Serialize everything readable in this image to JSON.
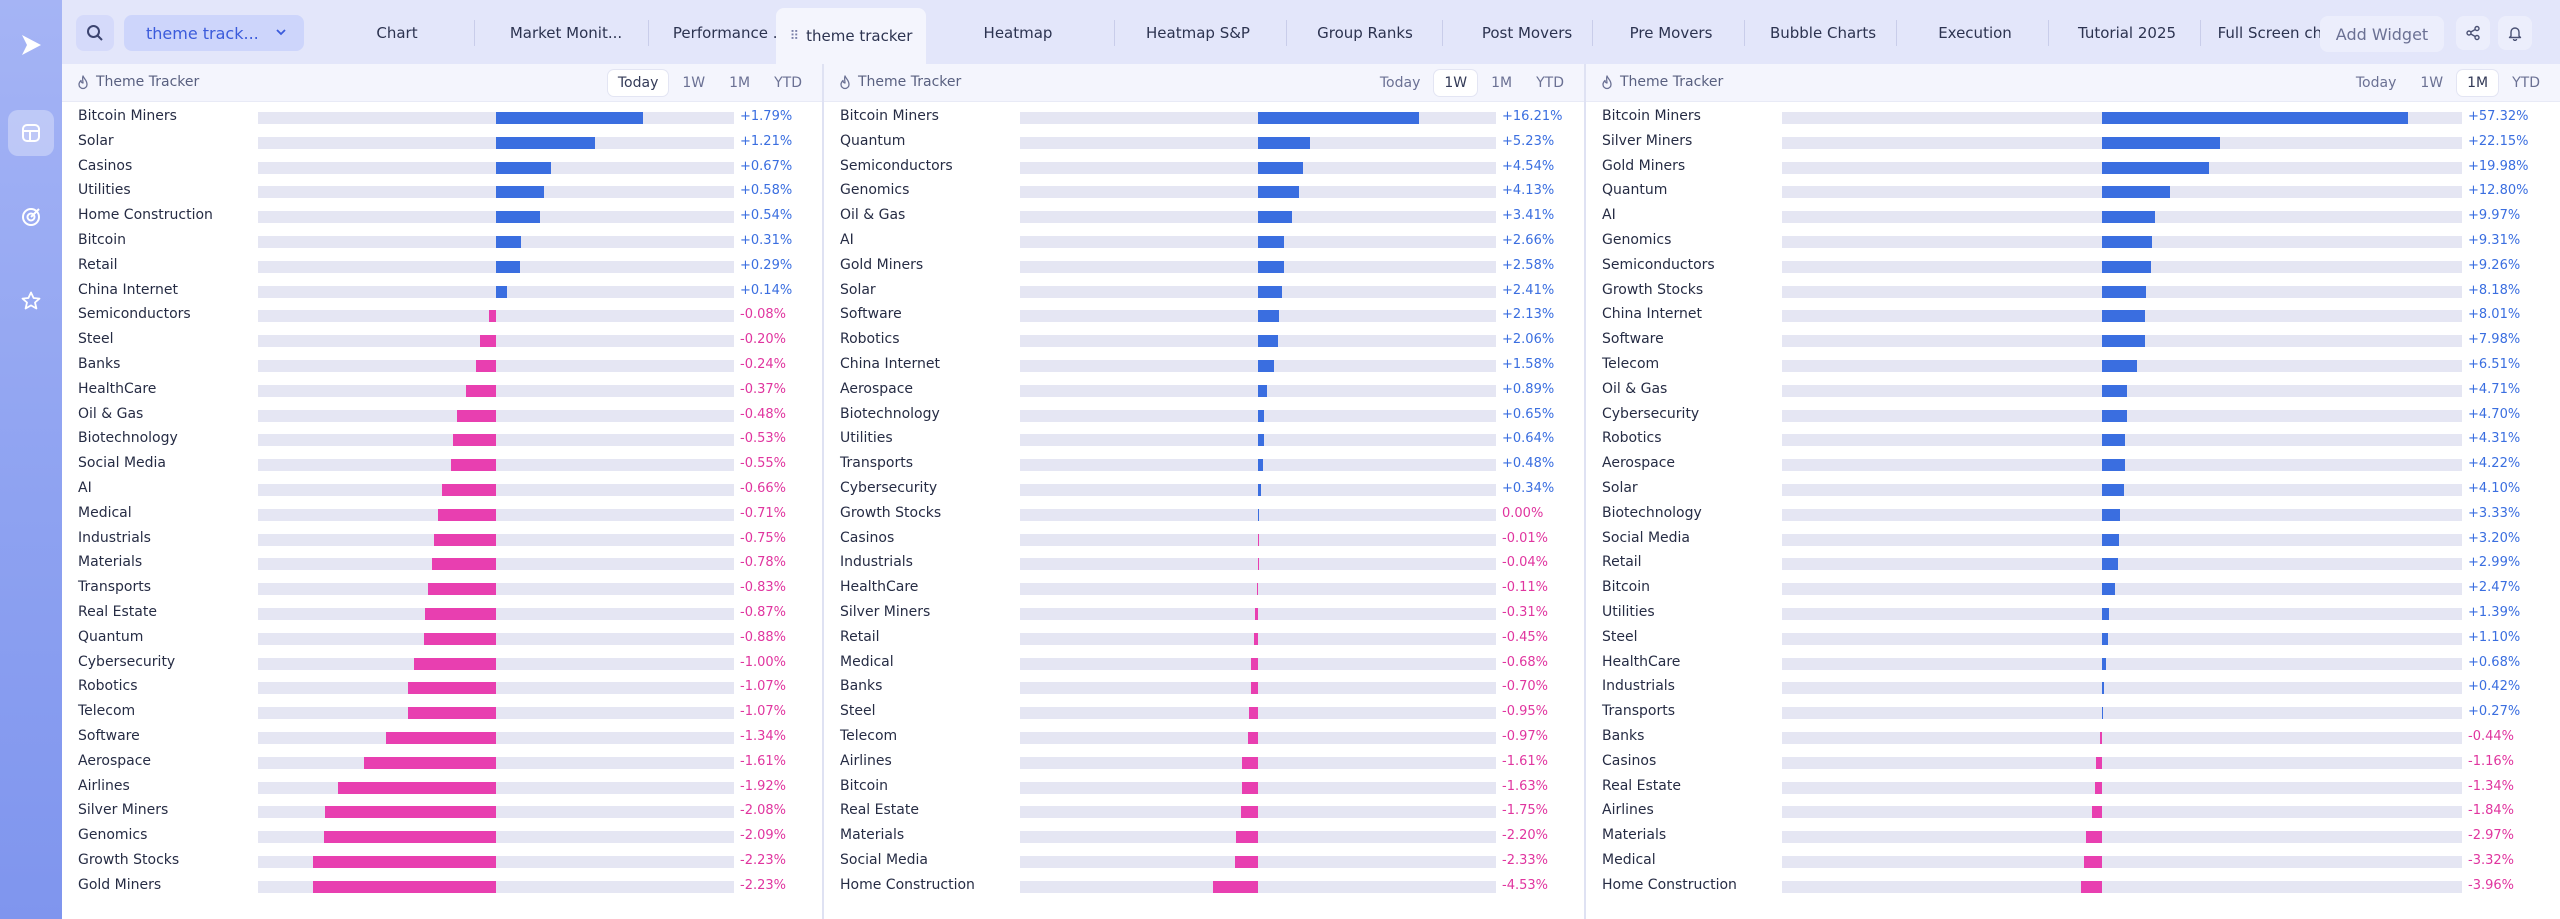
{
  "layout_select": {
    "label": "theme track..."
  },
  "tabs": [
    {
      "label": "Chart"
    },
    {
      "label": "Market Monit..."
    },
    {
      "label": "Performance ..."
    },
    {
      "label": "theme tracker"
    },
    {
      "label": "Heatmap"
    },
    {
      "label": "Heatmap S&P"
    },
    {
      "label": "Group Ranks"
    },
    {
      "label": "Post Movers"
    },
    {
      "label": "Pre Movers"
    },
    {
      "label": "Bubble Charts"
    },
    {
      "label": "Execution"
    },
    {
      "label": "Tutorial 2025"
    },
    {
      "label": "Full Screen ch..."
    }
  ],
  "add_widget": "Add Widget",
  "colors": {
    "positive": "#3a6ee0",
    "negative": "#e83fb0",
    "sidebar": "#8ea2f1"
  },
  "icons": {
    "sidebar": [
      "logo-play-icon",
      "layout-icon",
      "target-icon",
      "star-icon"
    ],
    "toolbar": [
      "search-icon",
      "chevron-down-icon",
      "share-icon",
      "bell-icon"
    ]
  },
  "panels": [
    {
      "title": "Theme Tracker",
      "periods": [
        "Today",
        "1W",
        "1M",
        "YTD"
      ],
      "active_period": "Today",
      "scale_max": 2.9,
      "rows": [
        {
          "name": "Bitcoin Miners",
          "value": 1.79,
          "label": "+1.79%"
        },
        {
          "name": "Solar",
          "value": 1.21,
          "label": "+1.21%"
        },
        {
          "name": "Casinos",
          "value": 0.67,
          "label": "+0.67%"
        },
        {
          "name": "Utilities",
          "value": 0.58,
          "label": "+0.58%"
        },
        {
          "name": "Home Construction",
          "value": 0.54,
          "label": "+0.54%"
        },
        {
          "name": "Bitcoin",
          "value": 0.31,
          "label": "+0.31%"
        },
        {
          "name": "Retail",
          "value": 0.29,
          "label": "+0.29%"
        },
        {
          "name": "China Internet",
          "value": 0.14,
          "label": "+0.14%"
        },
        {
          "name": "Semiconductors",
          "value": -0.08,
          "label": "-0.08%"
        },
        {
          "name": "Steel",
          "value": -0.2,
          "label": "-0.20%"
        },
        {
          "name": "Banks",
          "value": -0.24,
          "label": "-0.24%"
        },
        {
          "name": "HealthCare",
          "value": -0.37,
          "label": "-0.37%"
        },
        {
          "name": "Oil & Gas",
          "value": -0.48,
          "label": "-0.48%"
        },
        {
          "name": "Biotechnology",
          "value": -0.53,
          "label": "-0.53%"
        },
        {
          "name": "Social Media",
          "value": -0.55,
          "label": "-0.55%"
        },
        {
          "name": "AI",
          "value": -0.66,
          "label": "-0.66%"
        },
        {
          "name": "Medical",
          "value": -0.71,
          "label": "-0.71%"
        },
        {
          "name": "Industrials",
          "value": -0.75,
          "label": "-0.75%"
        },
        {
          "name": "Materials",
          "value": -0.78,
          "label": "-0.78%"
        },
        {
          "name": "Transports",
          "value": -0.83,
          "label": "-0.83%"
        },
        {
          "name": "Real Estate",
          "value": -0.87,
          "label": "-0.87%"
        },
        {
          "name": "Quantum",
          "value": -0.88,
          "label": "-0.88%"
        },
        {
          "name": "Cybersecurity",
          "value": -1.0,
          "label": "-1.00%"
        },
        {
          "name": "Robotics",
          "value": -1.07,
          "label": "-1.07%"
        },
        {
          "name": "Telecom",
          "value": -1.07,
          "label": "-1.07%"
        },
        {
          "name": "Software",
          "value": -1.34,
          "label": "-1.34%"
        },
        {
          "name": "Aerospace",
          "value": -1.61,
          "label": "-1.61%"
        },
        {
          "name": "Airlines",
          "value": -1.92,
          "label": "-1.92%"
        },
        {
          "name": "Silver Miners",
          "value": -2.08,
          "label": "-2.08%"
        },
        {
          "name": "Genomics",
          "value": -2.09,
          "label": "-2.09%"
        },
        {
          "name": "Growth Stocks",
          "value": -2.23,
          "label": "-2.23%"
        },
        {
          "name": "Gold Miners",
          "value": -2.23,
          "label": "-2.23%"
        }
      ]
    },
    {
      "title": "Theme Tracker",
      "periods": [
        "Today",
        "1W",
        "1M",
        "YTD"
      ],
      "active_period": "1W",
      "scale_max": 24.0,
      "rows": [
        {
          "name": "Bitcoin Miners",
          "value": 16.21,
          "label": "+16.21%"
        },
        {
          "name": "Quantum",
          "value": 5.23,
          "label": "+5.23%"
        },
        {
          "name": "Semiconductors",
          "value": 4.54,
          "label": "+4.54%"
        },
        {
          "name": "Genomics",
          "value": 4.13,
          "label": "+4.13%"
        },
        {
          "name": "Oil & Gas",
          "value": 3.41,
          "label": "+3.41%"
        },
        {
          "name": "AI",
          "value": 2.66,
          "label": "+2.66%"
        },
        {
          "name": "Gold Miners",
          "value": 2.58,
          "label": "+2.58%"
        },
        {
          "name": "Solar",
          "value": 2.41,
          "label": "+2.41%"
        },
        {
          "name": "Software",
          "value": 2.13,
          "label": "+2.13%"
        },
        {
          "name": "Robotics",
          "value": 2.06,
          "label": "+2.06%"
        },
        {
          "name": "China Internet",
          "value": 1.58,
          "label": "+1.58%"
        },
        {
          "name": "Aerospace",
          "value": 0.89,
          "label": "+0.89%"
        },
        {
          "name": "Biotechnology",
          "value": 0.65,
          "label": "+0.65%"
        },
        {
          "name": "Utilities",
          "value": 0.64,
          "label": "+0.64%"
        },
        {
          "name": "Transports",
          "value": 0.48,
          "label": "+0.48%"
        },
        {
          "name": "Cybersecurity",
          "value": 0.34,
          "label": "+0.34%"
        },
        {
          "name": "Growth Stocks",
          "value": 0.0,
          "label": "0.00%"
        },
        {
          "name": "Casinos",
          "value": -0.01,
          "label": "-0.01%"
        },
        {
          "name": "Industrials",
          "value": -0.04,
          "label": "-0.04%"
        },
        {
          "name": "HealthCare",
          "value": -0.11,
          "label": "-0.11%"
        },
        {
          "name": "Silver Miners",
          "value": -0.31,
          "label": "-0.31%"
        },
        {
          "name": "Retail",
          "value": -0.45,
          "label": "-0.45%"
        },
        {
          "name": "Medical",
          "value": -0.68,
          "label": "-0.68%"
        },
        {
          "name": "Banks",
          "value": -0.7,
          "label": "-0.70%"
        },
        {
          "name": "Steel",
          "value": -0.95,
          "label": "-0.95%"
        },
        {
          "name": "Telecom",
          "value": -0.97,
          "label": "-0.97%"
        },
        {
          "name": "Airlines",
          "value": -1.61,
          "label": "-1.61%"
        },
        {
          "name": "Bitcoin",
          "value": -1.63,
          "label": "-1.63%"
        },
        {
          "name": "Real Estate",
          "value": -1.75,
          "label": "-1.75%"
        },
        {
          "name": "Materials",
          "value": -2.2,
          "label": "-2.20%"
        },
        {
          "name": "Social Media",
          "value": -2.33,
          "label": "-2.33%"
        },
        {
          "name": "Home Construction",
          "value": -4.53,
          "label": "-4.53%"
        }
      ]
    },
    {
      "title": "Theme Tracker",
      "periods": [
        "Today",
        "1W",
        "1M",
        "YTD"
      ],
      "active_period": "1M",
      "scale_max": 60.0,
      "rows": [
        {
          "name": "Bitcoin Miners",
          "value": 57.32,
          "label": "+57.32%"
        },
        {
          "name": "Silver Miners",
          "value": 22.15,
          "label": "+22.15%"
        },
        {
          "name": "Gold Miners",
          "value": 19.98,
          "label": "+19.98%"
        },
        {
          "name": "Quantum",
          "value": 12.8,
          "label": "+12.80%"
        },
        {
          "name": "AI",
          "value": 9.97,
          "label": "+9.97%"
        },
        {
          "name": "Genomics",
          "value": 9.31,
          "label": "+9.31%"
        },
        {
          "name": "Semiconductors",
          "value": 9.26,
          "label": "+9.26%"
        },
        {
          "name": "Growth Stocks",
          "value": 8.18,
          "label": "+8.18%"
        },
        {
          "name": "China Internet",
          "value": 8.01,
          "label": "+8.01%"
        },
        {
          "name": "Software",
          "value": 7.98,
          "label": "+7.98%"
        },
        {
          "name": "Telecom",
          "value": 6.51,
          "label": "+6.51%"
        },
        {
          "name": "Oil & Gas",
          "value": 4.71,
          "label": "+4.71%"
        },
        {
          "name": "Cybersecurity",
          "value": 4.7,
          "label": "+4.70%"
        },
        {
          "name": "Robotics",
          "value": 4.31,
          "label": "+4.31%"
        },
        {
          "name": "Aerospace",
          "value": 4.22,
          "label": "+4.22%"
        },
        {
          "name": "Solar",
          "value": 4.1,
          "label": "+4.10%"
        },
        {
          "name": "Biotechnology",
          "value": 3.33,
          "label": "+3.33%"
        },
        {
          "name": "Social Media",
          "value": 3.2,
          "label": "+3.20%"
        },
        {
          "name": "Retail",
          "value": 2.99,
          "label": "+2.99%"
        },
        {
          "name": "Bitcoin",
          "value": 2.47,
          "label": "+2.47%"
        },
        {
          "name": "Utilities",
          "value": 1.39,
          "label": "+1.39%"
        },
        {
          "name": "Steel",
          "value": 1.1,
          "label": "+1.10%"
        },
        {
          "name": "HealthCare",
          "value": 0.68,
          "label": "+0.68%"
        },
        {
          "name": "Industrials",
          "value": 0.42,
          "label": "+0.42%"
        },
        {
          "name": "Transports",
          "value": 0.27,
          "label": "+0.27%"
        },
        {
          "name": "Banks",
          "value": -0.44,
          "label": "-0.44%"
        },
        {
          "name": "Casinos",
          "value": -1.16,
          "label": "-1.16%"
        },
        {
          "name": "Real Estate",
          "value": -1.34,
          "label": "-1.34%"
        },
        {
          "name": "Airlines",
          "value": -1.84,
          "label": "-1.84%"
        },
        {
          "name": "Materials",
          "value": -2.97,
          "label": "-2.97%"
        },
        {
          "name": "Medical",
          "value": -3.32,
          "label": "-3.32%"
        },
        {
          "name": "Home Construction",
          "value": -3.96,
          "label": "-3.96%"
        }
      ]
    }
  ]
}
